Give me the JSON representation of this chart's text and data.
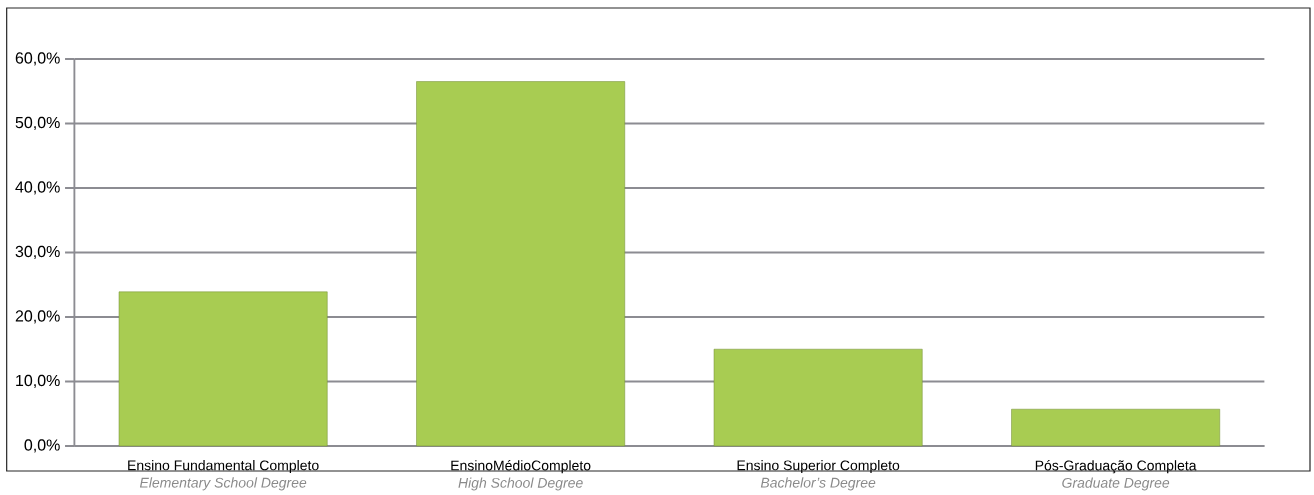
{
  "chart_data": {
    "type": "bar",
    "categories": [
      "Ensino Fundamental Completo",
      "EnsinoMédioCompleto",
      "Ensino Superior Completo",
      "Pós-Graduação Completa"
    ],
    "values": [
      23.9,
      56.5,
      15.0,
      5.7
    ],
    "color": "#a8cc52",
    "ylim": [
      0,
      60
    ],
    "yticks": [
      {
        "value": 0,
        "label": "0,0%"
      },
      {
        "value": 10,
        "label": "10,0%"
      },
      {
        "value": 20,
        "label": "20,0%"
      },
      {
        "value": 30,
        "label": "30,0%"
      },
      {
        "value": 40,
        "label": "40,0%"
      },
      {
        "value": 50,
        "label": "50,0%"
      },
      {
        "value": 60,
        "label": "60,0%"
      }
    ],
    "grid": "y",
    "annotations": [
      "Elementary School Degree",
      "High School Degree",
      "Bachelor’s Degree",
      "Graduate Degree"
    ]
  }
}
